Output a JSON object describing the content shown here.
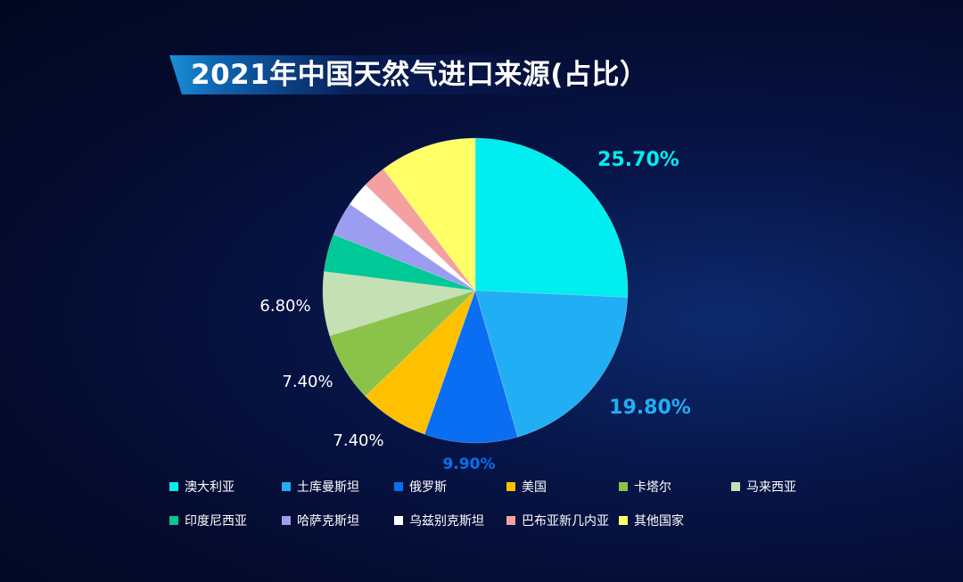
{
  "header": {
    "title": "2021年中国天然气进口来源(占比）"
  },
  "chart_data": {
    "type": "pie",
    "title": "2021年中国天然气进口来源(占比）",
    "categories": [
      "澳大利亚",
      "土库曼斯坦",
      "俄罗斯",
      "美国",
      "卡塔尔",
      "马来西亚",
      "印度尼西亚",
      "哈萨克斯坦",
      "乌兹别克斯坦",
      "巴布亚新几内亚",
      "其他国家"
    ],
    "values": [
      25.7,
      19.8,
      9.9,
      7.4,
      7.4,
      6.8,
      4.0,
      3.6,
      2.6,
      2.5,
      10.3
    ],
    "colors": [
      "#00eef0",
      "#22aef5",
      "#0a6ef2",
      "#ffc000",
      "#8bc34a",
      "#c5e0b4",
      "#00c896",
      "#9c9cf0",
      "#ffffff",
      "#f4a0a0",
      "#ffff66"
    ],
    "data_labels": [
      "25.70%",
      "19.80%",
      "9.90%",
      "7.40%",
      "7.40%",
      "6.80%",
      "",
      "",
      "",
      "",
      ""
    ],
    "label_colors": [
      "#00eef0",
      "#22aef5",
      "#0a6ef2",
      "#ffffff",
      "#ffffff",
      "#ffffff",
      "",
      "",
      "",
      "",
      ""
    ],
    "label_bold": [
      true,
      true,
      true,
      false,
      false,
      false,
      false,
      false,
      false,
      false,
      false
    ],
    "legend_position": "bottom"
  }
}
